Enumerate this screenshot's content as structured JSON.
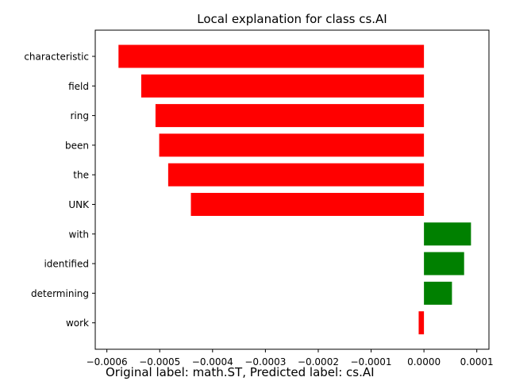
{
  "chart_data": {
    "type": "bar",
    "orientation": "horizontal",
    "title": "Local explanation for class cs.AI",
    "xlabel": "",
    "ylabel": "",
    "categories": [
      "characteristic",
      "field",
      "ring",
      "been",
      "the",
      "UNK",
      "with",
      "identified",
      "determining",
      "work"
    ],
    "values": [
      -0.000578,
      -0.000535,
      -0.000508,
      -0.000501,
      -0.000484,
      -0.000441,
      8.9e-05,
      7.6e-05,
      5.3e-05,
      -1e-05
    ],
    "xlim": [
      -0.000622,
      0.000123
    ],
    "xticks": [
      -0.0006,
      -0.0005,
      -0.0004,
      -0.0003,
      -0.0002,
      -0.0001,
      0.0,
      0.0001
    ],
    "xtick_labels": [
      "−0.0006",
      "−0.0005",
      "−0.0004",
      "−0.0003",
      "−0.0002",
      "−0.0001",
      "0.0000",
      "0.0001"
    ],
    "colors": {
      "positive": "#008000",
      "negative": "#ff0000"
    },
    "grid": false
  },
  "caption": "Original label: math.ST, Predicted label: cs.AI"
}
